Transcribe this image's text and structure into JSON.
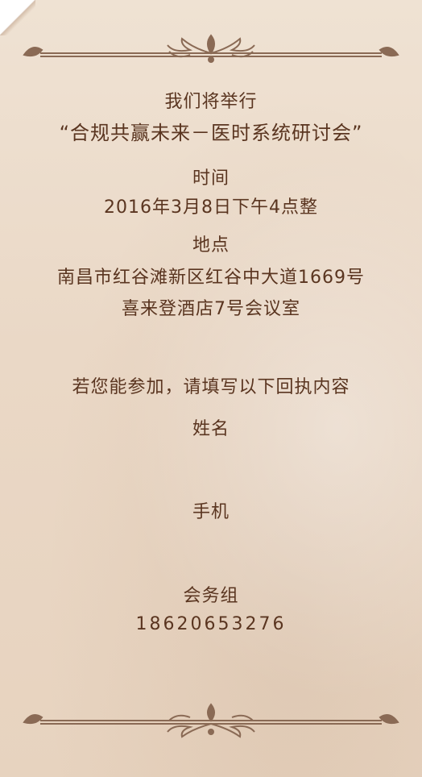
{
  "invite": {
    "line1": "我们将举行",
    "title": "“合规共赢未来－医时系统研讨会”",
    "time_label": "时间",
    "time_value": "2016年3月8日下午4点整",
    "place_label": "地点",
    "place_line1": "南昌市红谷滩新区红谷中大道1669号",
    "place_line2": "喜来登酒店7号会议室",
    "rsvp_prompt": "若您能参加，请填写以下回执内容",
    "name_label": "姓名",
    "phone_label": "手机",
    "contact_group": "会务组",
    "contact_phone": "18620653276"
  },
  "colors": {
    "text": "#5a3520",
    "ornament": "#8a6a55",
    "background": "#ecdccb"
  },
  "icons": {
    "top": "scroll-ornament-icon",
    "bottom": "scroll-ornament-icon",
    "corner": "page-curl-icon"
  }
}
